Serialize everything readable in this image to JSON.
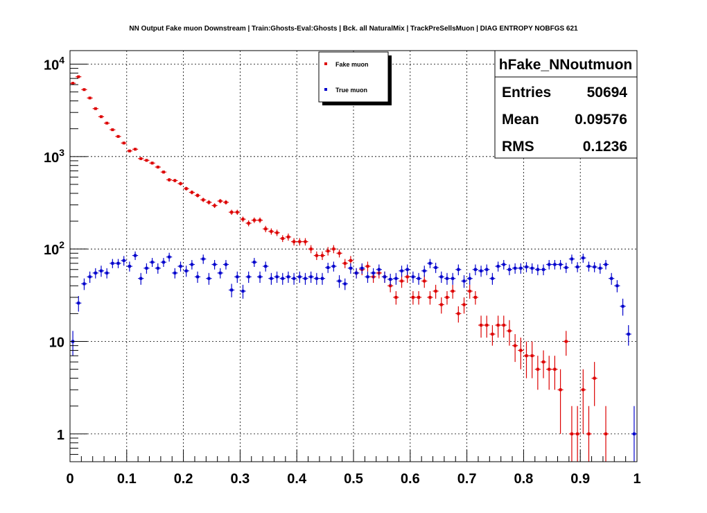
{
  "title": "NN Output Fake muon Downstream | Train:Ghosts-Eval:Ghosts | Bck. all NaturalMix | TrackPreSellsMuon | DIAG ENTROPY NOBFGS 621",
  "stats": {
    "name": "hFake_NNoutmuon",
    "rows": [
      {
        "label": "Entries",
        "value": "50694"
      },
      {
        "label": "Mean",
        "value": "0.09576"
      },
      {
        "label": "RMS",
        "value": "0.1236"
      }
    ]
  },
  "chart_data": {
    "type": "scatter",
    "title": "NN Output Fake muon Downstream | Train:Ghosts-Eval:Ghosts | Bck. all NaturalMix | TrackPreSellsMuon | DIAG ENTROPY NOBFGS 621",
    "xlabel": "",
    "ylabel": "",
    "xlim": [
      0,
      1
    ],
    "ylim": [
      0.5,
      14000
    ],
    "yscale": "log",
    "grid": true,
    "legend_position": "top-center",
    "x_ticks": [
      "0",
      "0.1",
      "0.2",
      "0.3",
      "0.4",
      "0.5",
      "0.6",
      "0.7",
      "0.8",
      "0.9",
      "1"
    ],
    "y_ticks": [
      {
        "value": 1,
        "label": "1"
      },
      {
        "value": 10,
        "label": "10"
      },
      {
        "value": 100,
        "label": "10",
        "exp": "2"
      },
      {
        "value": 1000,
        "label": "10",
        "exp": "3"
      },
      {
        "value": 10000,
        "label": "10",
        "exp": "4"
      }
    ],
    "bin_width": 0.01,
    "series": [
      {
        "name": "Fake muon",
        "color": "#dd0000",
        "x": [
          0.005,
          0.015,
          0.025,
          0.035,
          0.045,
          0.055,
          0.065,
          0.075,
          0.085,
          0.095,
          0.105,
          0.115,
          0.125,
          0.135,
          0.145,
          0.155,
          0.165,
          0.175,
          0.185,
          0.195,
          0.205,
          0.215,
          0.225,
          0.235,
          0.245,
          0.255,
          0.265,
          0.275,
          0.285,
          0.295,
          0.305,
          0.315,
          0.325,
          0.335,
          0.345,
          0.355,
          0.365,
          0.375,
          0.385,
          0.395,
          0.405,
          0.415,
          0.425,
          0.435,
          0.445,
          0.455,
          0.465,
          0.475,
          0.485,
          0.495,
          0.505,
          0.515,
          0.525,
          0.535,
          0.545,
          0.555,
          0.565,
          0.575,
          0.585,
          0.595,
          0.605,
          0.615,
          0.625,
          0.635,
          0.645,
          0.655,
          0.665,
          0.675,
          0.685,
          0.695,
          0.705,
          0.715,
          0.725,
          0.735,
          0.745,
          0.755,
          0.765,
          0.775,
          0.785,
          0.795,
          0.805,
          0.815,
          0.825,
          0.835,
          0.845,
          0.855,
          0.865,
          0.875,
          0.885,
          0.895,
          0.905,
          0.915,
          0.925,
          0.935,
          0.945,
          0.955,
          0.965,
          0.975
        ],
        "y": [
          6200,
          7300,
          5300,
          4300,
          3300,
          2700,
          2300,
          1950,
          1650,
          1400,
          1150,
          1200,
          950,
          910,
          850,
          770,
          680,
          560,
          550,
          510,
          450,
          410,
          380,
          340,
          320,
          295,
          330,
          320,
          250,
          250,
          210,
          190,
          205,
          205,
          165,
          155,
          150,
          130,
          135,
          120,
          120,
          120,
          100,
          85,
          85,
          95,
          100,
          90,
          70,
          75,
          55,
          60,
          65,
          50,
          55,
          50,
          40,
          30,
          45,
          50,
          30,
          30,
          45,
          30,
          35,
          25,
          30,
          35,
          20,
          25,
          35,
          30,
          15,
          15,
          12,
          15,
          15,
          13,
          9,
          8,
          7,
          7,
          5,
          6,
          5,
          5,
          3,
          10,
          1,
          1,
          3,
          1,
          4,
          0,
          1,
          0,
          0,
          0
        ],
        "yerr": [
          78,
          85,
          73,
          65,
          57,
          52,
          48,
          44,
          41,
          37,
          34,
          35,
          31,
          30,
          29,
          28,
          26,
          24,
          23,
          23,
          21,
          20,
          19,
          18,
          18,
          17,
          18,
          18,
          16,
          16,
          14,
          14,
          14,
          14,
          13,
          12,
          12,
          11,
          12,
          11,
          11,
          11,
          10,
          9,
          9,
          10,
          10,
          9,
          8,
          9,
          7,
          8,
          8,
          7,
          7,
          7,
          6,
          5,
          7,
          7,
          5,
          5,
          7,
          5,
          6,
          5,
          5,
          6,
          4,
          5,
          6,
          5,
          4,
          4,
          3,
          4,
          4,
          4,
          3,
          3,
          3,
          3,
          2,
          2,
          2,
          2,
          2,
          3,
          1,
          1,
          2,
          1,
          2,
          0,
          1,
          0,
          0,
          0
        ]
      },
      {
        "name": "True muon",
        "color": "#0000cc",
        "x": [
          0.005,
          0.015,
          0.025,
          0.035,
          0.045,
          0.055,
          0.065,
          0.075,
          0.085,
          0.095,
          0.105,
          0.115,
          0.125,
          0.135,
          0.145,
          0.155,
          0.165,
          0.175,
          0.185,
          0.195,
          0.205,
          0.215,
          0.225,
          0.235,
          0.245,
          0.255,
          0.265,
          0.275,
          0.285,
          0.295,
          0.305,
          0.315,
          0.325,
          0.335,
          0.345,
          0.355,
          0.365,
          0.375,
          0.385,
          0.395,
          0.405,
          0.415,
          0.425,
          0.435,
          0.445,
          0.455,
          0.465,
          0.475,
          0.485,
          0.495,
          0.505,
          0.515,
          0.525,
          0.535,
          0.545,
          0.555,
          0.565,
          0.575,
          0.585,
          0.595,
          0.605,
          0.615,
          0.625,
          0.635,
          0.645,
          0.655,
          0.665,
          0.675,
          0.685,
          0.695,
          0.705,
          0.715,
          0.725,
          0.735,
          0.745,
          0.755,
          0.765,
          0.775,
          0.785,
          0.795,
          0.805,
          0.815,
          0.825,
          0.835,
          0.845,
          0.855,
          0.865,
          0.875,
          0.885,
          0.895,
          0.905,
          0.915,
          0.925,
          0.935,
          0.945,
          0.955,
          0.965,
          0.975,
          0.985,
          0.995
        ],
        "y": [
          10,
          26,
          42,
          50,
          55,
          58,
          55,
          70,
          70,
          75,
          65,
          85,
          48,
          62,
          72,
          62,
          72,
          82,
          55,
          65,
          58,
          68,
          50,
          78,
          48,
          68,
          55,
          68,
          36,
          50,
          35,
          50,
          72,
          50,
          65,
          48,
          50,
          48,
          50,
          48,
          50,
          48,
          50,
          48,
          48,
          63,
          65,
          45,
          42,
          62,
          55,
          62,
          50,
          55,
          60,
          50,
          47,
          48,
          58,
          60,
          50,
          48,
          58,
          70,
          63,
          50,
          48,
          48,
          60,
          45,
          48,
          60,
          58,
          60,
          48,
          65,
          68,
          60,
          62,
          62,
          64,
          62,
          60,
          60,
          68,
          68,
          68,
          63,
          78,
          64,
          80,
          65,
          64,
          62,
          68,
          48,
          40,
          24,
          12,
          1
        ],
        "yerr": [
          3,
          5,
          6,
          7,
          7,
          8,
          7,
          8,
          8,
          9,
          8,
          9,
          7,
          8,
          8,
          8,
          8,
          9,
          7,
          8,
          8,
          8,
          7,
          9,
          7,
          8,
          7,
          8,
          6,
          7,
          6,
          7,
          8,
          7,
          8,
          7,
          7,
          7,
          7,
          7,
          7,
          7,
          7,
          7,
          7,
          8,
          8,
          7,
          6,
          8,
          7,
          8,
          7,
          7,
          8,
          7,
          7,
          7,
          8,
          8,
          7,
          7,
          8,
          8,
          8,
          7,
          7,
          7,
          8,
          7,
          7,
          8,
          8,
          8,
          7,
          8,
          8,
          8,
          8,
          8,
          8,
          8,
          8,
          8,
          8,
          8,
          8,
          8,
          9,
          8,
          9,
          8,
          8,
          8,
          8,
          7,
          6,
          5,
          3,
          1
        ]
      }
    ]
  }
}
